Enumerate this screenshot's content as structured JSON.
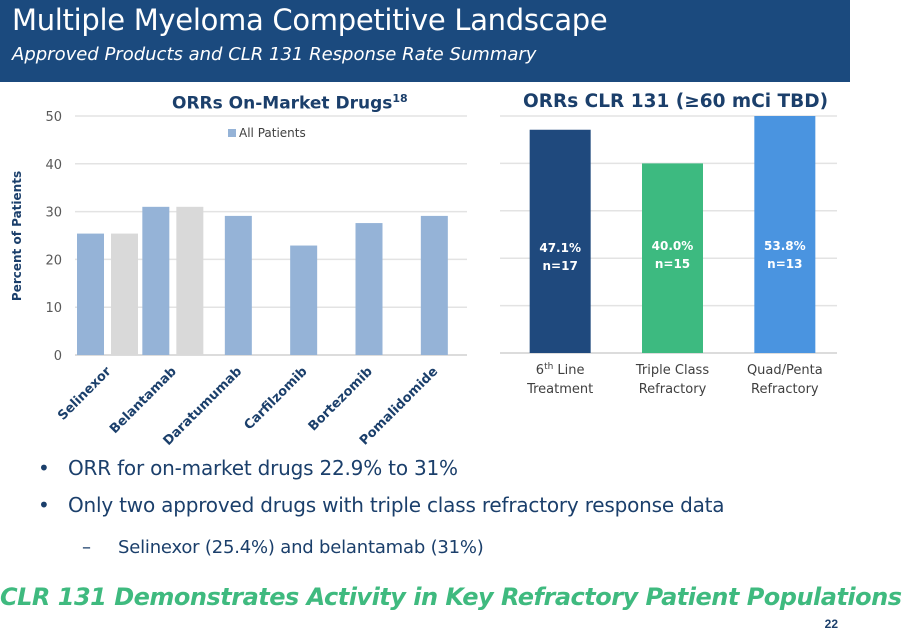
{
  "header": {
    "title": "Multiple Myeloma Competitive Landscape",
    "subtitle": "Approved Products and CLR 131 Response Rate Summary",
    "background_color": "#1b4a7e"
  },
  "chart_data": [
    {
      "type": "bar",
      "title": "ORRs On-Market Drugs",
      "title_superscript": "18",
      "xlabel": "",
      "ylabel": "Percent of Patients",
      "ylim": [
        0,
        50
      ],
      "yticks": [
        0,
        10,
        20,
        30,
        40,
        50
      ],
      "grid": true,
      "legend": {
        "position": "top-center",
        "entries": [
          "All Patients"
        ]
      },
      "categories": [
        "Selinexor",
        "Belantamab",
        "Daratumumab",
        "Carfilzomib",
        "Bortezomib",
        "Pomalidomide"
      ],
      "series": [
        {
          "name": "All Patients",
          "color": "#95b3d7",
          "values": [
            25.4,
            31,
            29.1,
            22.9,
            27.6,
            29.1
          ]
        },
        {
          "name": "Triple Class Refractory",
          "color": "#d9d9d9",
          "values": [
            25.4,
            31,
            null,
            null,
            null,
            null
          ],
          "in_legend": false
        }
      ]
    },
    {
      "type": "bar",
      "title": "ORRs CLR 131 (≥60 mCi TBD)",
      "xlabel": "",
      "ylabel": "",
      "ylim": [
        0,
        50
      ],
      "grid": true,
      "categories": [
        {
          "line1": "6",
          "sup": "th",
          "line1_rest": " Line",
          "line2": "Treatment"
        },
        {
          "line1": "Triple Class",
          "sup": "",
          "line1_rest": "",
          "line2": "Refractory"
        },
        {
          "line1": "Quad/Penta",
          "sup": "",
          "line1_rest": "",
          "line2": "Refractory"
        }
      ],
      "values": [
        47.1,
        40.0,
        53.8
      ],
      "colors": [
        "#1f497d",
        "#3dba80",
        "#4a94e0"
      ],
      "data_labels": [
        {
          "pct": "47.1%",
          "n": "n=17"
        },
        {
          "pct": "40.0%",
          "n": "n=15"
        },
        {
          "pct": "53.8%",
          "n": "n=13"
        }
      ]
    }
  ],
  "bullets": [
    {
      "marker": "•",
      "text": "ORR for on-market drugs 22.9% to 31%"
    },
    {
      "marker": "•",
      "text": "Only two approved drugs with triple class refractory response data"
    },
    {
      "marker": "–",
      "text": "Selinexor (25.4%) and belantamab (31%)"
    }
  ],
  "tagline": "CLR 131 Demonstrates Activity in Key Refractory Patient Populations",
  "page_number": "22"
}
